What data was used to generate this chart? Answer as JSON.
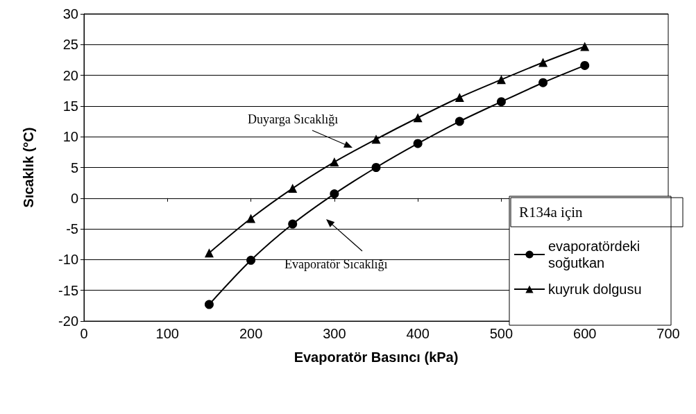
{
  "chart_data": {
    "type": "line",
    "xlabel": "Evaporatör Basıncı (kPa)",
    "ylabel": "Sıcaklık (°C)",
    "legend_title": "R134a için",
    "x": [
      150,
      200,
      250,
      300,
      350,
      400,
      450,
      500,
      550,
      600
    ],
    "series": [
      {
        "name": "evaporatördeki soğutkan",
        "color": "#000000",
        "marker": "circle",
        "values": [
          -17.3,
          -10.1,
          -4.2,
          0.7,
          5.0,
          8.9,
          12.5,
          15.7,
          18.8,
          21.6
        ]
      },
      {
        "name": "kuyruk dolgusu",
        "color": "#000000",
        "marker": "triangle",
        "values": [
          -8.9,
          -3.3,
          1.6,
          5.9,
          9.6,
          13.1,
          16.4,
          19.3,
          22.1,
          24.7
        ]
      }
    ],
    "annotations": [
      "Duyarga Sıcaklığı",
      "Evaporatör Sıcaklığı"
    ],
    "xlim": [
      0,
      700
    ],
    "xticks": [
      0,
      100,
      200,
      300,
      400,
      500,
      600,
      700
    ],
    "ylim": [
      -20,
      30
    ],
    "yticks": [
      -20,
      -15,
      -10,
      -5,
      0,
      5,
      10,
      15,
      20,
      25,
      30
    ],
    "grid": "y",
    "legend": "bottom right",
    "line_style": "solid"
  }
}
